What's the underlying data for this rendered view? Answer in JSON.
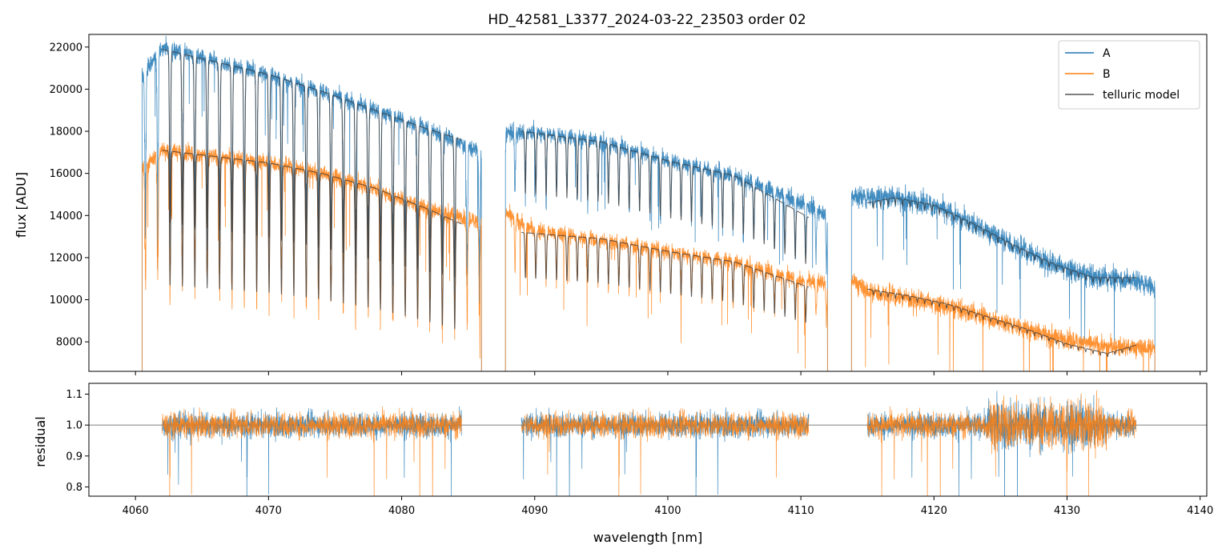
{
  "chart_data": [
    {
      "panel": "spectrum",
      "type": "line",
      "title": "HD_42581_L3377_2024-03-22_23503  order 02",
      "xlabel": "",
      "ylabel": "flux [ADU]",
      "xlim": [
        4056.5,
        4140.5
      ],
      "ylim": [
        6600,
        22600
      ],
      "xticks": [
        4060,
        4070,
        4080,
        4090,
        4100,
        4110,
        4120,
        4130,
        4140
      ],
      "yticks": [
        8000,
        10000,
        12000,
        14000,
        16000,
        18000,
        20000,
        22000
      ],
      "ytick_labels": [
        "8000",
        "10000",
        "12000",
        "14000",
        "16000",
        "18000",
        "20000",
        "22000"
      ],
      "legend_position": "top-right",
      "legend": [
        "A",
        "B",
        "telluric model"
      ],
      "segments": [
        [
          4060.5,
          4086.0
        ],
        [
          4087.8,
          4112.0
        ],
        [
          4113.8,
          4136.6
        ]
      ],
      "series": [
        {
          "name": "A",
          "color": "#1f77b4",
          "segments": [
            {
              "x0": 4060.5,
              "x1": 4086.0,
              "x": [
                4060.5,
                4062,
                4066,
                4070,
                4074,
                4078,
                4082,
                4086.0
              ],
              "y": [
                20600,
                22000,
                21300,
                20700,
                19900,
                19000,
                18100,
                17000
              ]
            },
            {
              "x0": 4087.8,
              "x1": 4112.0,
              "x": [
                4087.8,
                4090,
                4095,
                4100,
                4105,
                4110,
                4112.0
              ],
              "y": [
                17900,
                18000,
                17500,
                16600,
                15900,
                14600,
                14100
              ]
            },
            {
              "x0": 4113.8,
              "x1": 4136.6,
              "x": [
                4113.8,
                4115,
                4117,
                4120,
                4123,
                4126,
                4129,
                4132,
                4135,
                4136.6
              ],
              "y": [
                15000,
                14900,
                14900,
                14500,
                13600,
                12600,
                11700,
                11100,
                11000,
                10600
              ]
            }
          ]
        },
        {
          "name": "B",
          "color": "#ff7f0e",
          "segments": [
            {
              "x0": 4060.5,
              "x1": 4086.0,
              "x": [
                4060.5,
                4062,
                4066,
                4070,
                4074,
                4078,
                4082,
                4086.0
              ],
              "y": [
                16200,
                17100,
                16800,
                16500,
                16000,
                15300,
                14300,
                13700
              ]
            },
            {
              "x0": 4087.8,
              "x1": 4112.0,
              "x": [
                4087.8,
                4090,
                4095,
                4100,
                4105,
                4110,
                4112.0
              ],
              "y": [
                14100,
                13300,
                12800,
                12300,
                11800,
                10900,
                10800
              ]
            },
            {
              "x0": 4113.8,
              "x1": 4136.6,
              "x": [
                4113.8,
                4115,
                4118,
                4121,
                4124,
                4127,
                4130,
                4133,
                4136.6
              ],
              "y": [
                11000,
                10400,
                10100,
                9700,
                9200,
                8600,
                8100,
                7800,
                7700
              ]
            }
          ]
        },
        {
          "name": "telluric model",
          "color": "#3a3a3a",
          "segments": [
            {
              "x0": 4062.0,
              "x1": 4084.5,
              "x": [
                4062,
                4066,
                4070,
                4074,
                4078,
                4082,
                4084.5
              ],
              "y": [
                21900,
                21300,
                20700,
                19900,
                19000,
                18100,
                17600
              ]
            },
            {
              "x0": 4062.0,
              "x1": 4084.5,
              "x": [
                4062,
                4066,
                4070,
                4074,
                4078,
                4082,
                4084.5
              ],
              "y": [
                17100,
                16800,
                16500,
                16000,
                15300,
                14300,
                13600
              ]
            },
            {
              "x0": 4089.0,
              "x1": 4110.6,
              "x": [
                4089,
                4095,
                4100,
                4105,
                4110.6
              ],
              "y": [
                18000,
                17500,
                16600,
                15900,
                13900
              ]
            },
            {
              "x0": 4089.0,
              "x1": 4110.6,
              "x": [
                4089,
                4095,
                4100,
                4105,
                4110.6
              ],
              "y": [
                13200,
                12900,
                12300,
                11800,
                10600
              ]
            },
            {
              "x0": 4115.0,
              "x1": 4135.2,
              "x": [
                4115,
                4117,
                4120,
                4123,
                4126,
                4129,
                4132,
                4135.2
              ],
              "y": [
                14600,
                14850,
                14500,
                13600,
                12600,
                11700,
                11050,
                11050
              ]
            },
            {
              "x0": 4115.0,
              "x1": 4135.2,
              "x": [
                4115,
                4118,
                4121,
                4124,
                4127,
                4130,
                4133,
                4135.2
              ],
              "y": [
                10500,
                10200,
                9800,
                9200,
                8600,
                7900,
                7450,
                7850
              ]
            }
          ]
        }
      ]
    },
    {
      "panel": "residual",
      "type": "line",
      "title": "",
      "xlabel": "wavelength [nm]",
      "ylabel": "residual",
      "xlim": [
        4056.5,
        4140.5
      ],
      "ylim": [
        0.77,
        1.135
      ],
      "xticks": [
        4060,
        4070,
        4080,
        4090,
        4100,
        4110,
        4120,
        4130,
        4140
      ],
      "xtick_labels": [
        "4060",
        "4070",
        "4080",
        "4090",
        "4100",
        "4110",
        "4120",
        "4130",
        "4140"
      ],
      "yticks": [
        0.8,
        0.9,
        1.0,
        1.1
      ],
      "ytick_labels": [
        "0.8",
        "0.9",
        "1.0",
        "1.1"
      ],
      "reference_line": 1.0,
      "segments": [
        [
          4062.0,
          4084.5
        ],
        [
          4089.0,
          4110.6
        ],
        [
          4115.0,
          4135.2
        ]
      ],
      "series": [
        {
          "name": "A",
          "color": "#1f77b4",
          "center": 1.0
        },
        {
          "name": "B",
          "color": "#ff7f0e",
          "center": 1.0
        }
      ]
    }
  ]
}
